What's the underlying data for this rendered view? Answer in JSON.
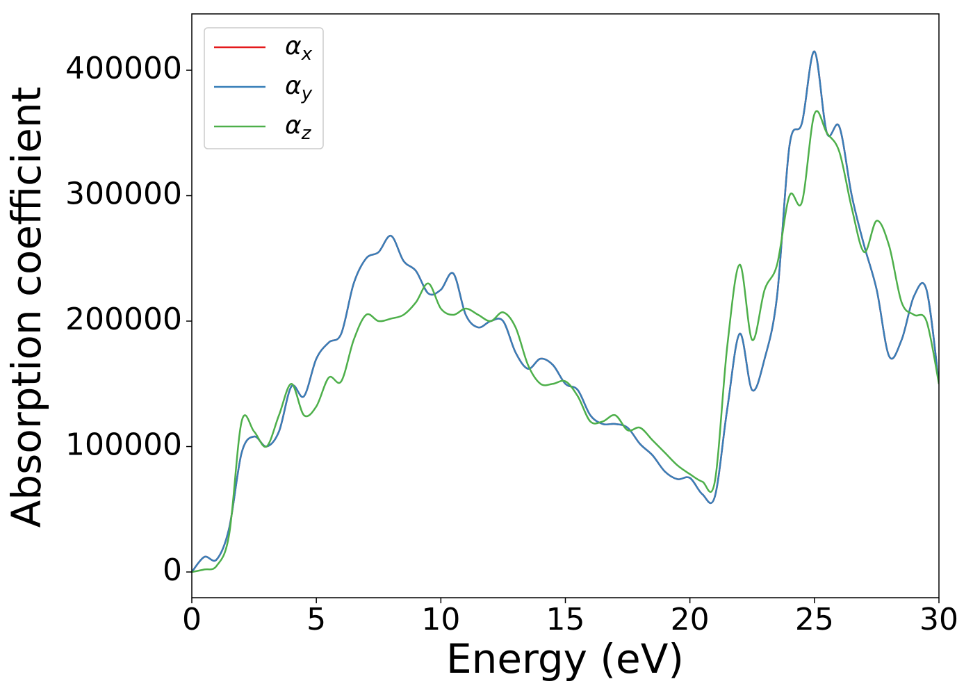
{
  "chart_data": {
    "type": "line",
    "xlabel": "Energy (eV)",
    "ylabel": "Absorption coefficient",
    "x": [
      0,
      0.5,
      1,
      1.5,
      2,
      2.5,
      3,
      3.5,
      4,
      4.5,
      5,
      5.5,
      6,
      6.5,
      7,
      7.5,
      8,
      8.5,
      9,
      9.5,
      10,
      10.5,
      11,
      11.5,
      12,
      12.5,
      13,
      13.5,
      14,
      14.5,
      15,
      15.5,
      16,
      16.5,
      17,
      17.5,
      18,
      18.5,
      19,
      19.5,
      20,
      20.5,
      21,
      21.5,
      22,
      22.5,
      23,
      23.5,
      24,
      24.5,
      25,
      25.5,
      26,
      26.5,
      27,
      27.5,
      28,
      28.5,
      29,
      29.5,
      30
    ],
    "series": [
      {
        "name": "αx",
        "color": "#e41a1c",
        "values": [
          0,
          12000,
          10000,
          35000,
          95000,
          108000,
          100000,
          112000,
          148000,
          140000,
          170000,
          183000,
          190000,
          230000,
          250000,
          255000,
          268000,
          248000,
          240000,
          222000,
          225000,
          238000,
          205000,
          195000,
          200000,
          200000,
          175000,
          162000,
          170000,
          165000,
          150000,
          145000,
          125000,
          118000,
          118000,
          115000,
          102000,
          93000,
          80000,
          74000,
          75000,
          62000,
          60000,
          130000,
          190000,
          145000,
          170000,
          220000,
          340000,
          358000,
          415000,
          350000,
          355000,
          300000,
          260000,
          225000,
          172000,
          185000,
          220000,
          225000,
          150000
        ]
      },
      {
        "name": "αy",
        "color": "#377eb8",
        "values": [
          0,
          12000,
          10000,
          35000,
          95000,
          108000,
          100000,
          112000,
          148000,
          140000,
          170000,
          183000,
          190000,
          230000,
          250000,
          255000,
          268000,
          248000,
          240000,
          222000,
          225000,
          238000,
          205000,
          195000,
          200000,
          200000,
          175000,
          162000,
          170000,
          165000,
          150000,
          145000,
          125000,
          118000,
          118000,
          115000,
          102000,
          93000,
          80000,
          74000,
          75000,
          62000,
          60000,
          130000,
          190000,
          145000,
          170000,
          220000,
          340000,
          358000,
          415000,
          350000,
          355000,
          300000,
          260000,
          225000,
          172000,
          185000,
          220000,
          225000,
          150000
        ]
      },
      {
        "name": "αz",
        "color": "#4daf4a",
        "values": [
          0,
          2000,
          5000,
          30000,
          120000,
          112000,
          100000,
          125000,
          150000,
          125000,
          132000,
          155000,
          152000,
          185000,
          205000,
          200000,
          202000,
          205000,
          215000,
          230000,
          210000,
          205000,
          210000,
          205000,
          200000,
          207000,
          195000,
          165000,
          150000,
          150000,
          152000,
          140000,
          120000,
          120000,
          125000,
          113000,
          115000,
          105000,
          95000,
          85000,
          78000,
          72000,
          72000,
          180000,
          245000,
          185000,
          225000,
          245000,
          300000,
          295000,
          365000,
          350000,
          335000,
          290000,
          255000,
          280000,
          260000,
          215000,
          205000,
          200000,
          150000
        ]
      }
    ],
    "xlim": [
      0,
      30
    ],
    "xticks": [
      0,
      5,
      10,
      15,
      20,
      25,
      30
    ],
    "ylim": [
      -20500,
      444900
    ],
    "yticks": [
      0,
      100000,
      200000,
      300000,
      400000
    ],
    "legend": "upper left"
  }
}
